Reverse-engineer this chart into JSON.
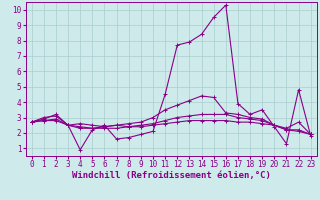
{
  "xlabel": "Windchill (Refroidissement éolien,°C)",
  "background_color": "#ceeaea",
  "grid_color": "#aacece",
  "line_color": "#880088",
  "x_values": [
    0,
    1,
    2,
    3,
    4,
    5,
    6,
    7,
    8,
    9,
    10,
    11,
    12,
    13,
    14,
    15,
    16,
    17,
    18,
    19,
    20,
    21,
    22,
    23
  ],
  "series": [
    [
      2.7,
      3.0,
      3.1,
      2.5,
      0.9,
      2.2,
      2.5,
      1.6,
      1.7,
      1.9,
      2.1,
      4.5,
      7.7,
      7.9,
      8.4,
      9.5,
      10.3,
      3.9,
      3.2,
      3.5,
      2.4,
      1.3,
      4.8,
      1.8
    ],
    [
      2.7,
      2.9,
      3.2,
      2.5,
      2.6,
      2.5,
      2.4,
      2.5,
      2.6,
      2.7,
      3.0,
      3.5,
      3.8,
      4.1,
      4.4,
      4.3,
      3.3,
      3.2,
      3.0,
      2.9,
      2.5,
      2.3,
      2.7,
      1.9
    ],
    [
      2.7,
      2.8,
      2.9,
      2.5,
      2.4,
      2.3,
      2.4,
      2.5,
      2.4,
      2.5,
      2.6,
      2.8,
      3.0,
      3.1,
      3.2,
      3.2,
      3.2,
      3.0,
      2.9,
      2.8,
      2.5,
      2.2,
      2.2,
      1.9
    ],
    [
      2.7,
      2.8,
      2.8,
      2.5,
      2.3,
      2.3,
      2.3,
      2.3,
      2.4,
      2.4,
      2.5,
      2.6,
      2.7,
      2.8,
      2.8,
      2.8,
      2.8,
      2.7,
      2.7,
      2.6,
      2.5,
      2.2,
      2.1,
      1.9
    ]
  ],
  "ylim": [
    0.5,
    10.5
  ],
  "xlim": [
    -0.5,
    23.5
  ],
  "yticks": [
    1,
    2,
    3,
    4,
    5,
    6,
    7,
    8,
    9,
    10
  ],
  "xticks": [
    0,
    1,
    2,
    3,
    4,
    5,
    6,
    7,
    8,
    9,
    10,
    11,
    12,
    13,
    14,
    15,
    16,
    17,
    18,
    19,
    20,
    21,
    22,
    23
  ],
  "marker": "+",
  "markersize": 3,
  "linewidth": 0.8,
  "tick_fontsize": 5.5,
  "xlabel_fontsize": 6.5,
  "xlabel_fontweight": "bold"
}
